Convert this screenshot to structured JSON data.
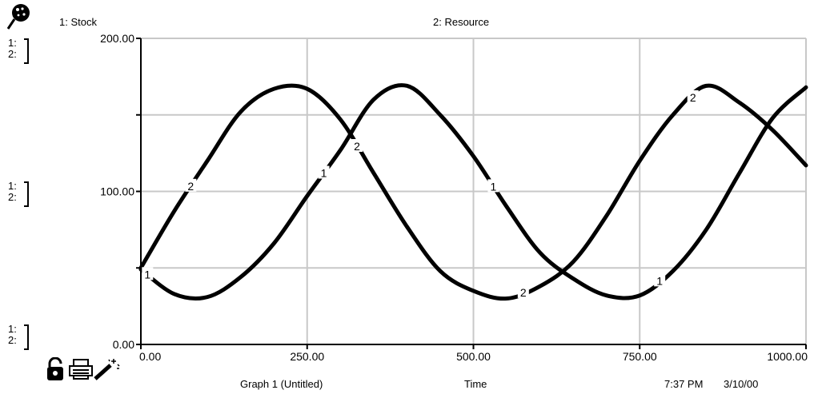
{
  "header": {
    "series1_label": "1: Stock",
    "series2_label": "2: Resource"
  },
  "scale_labels": {
    "top": [
      "1:",
      "2:"
    ],
    "mid": [
      "1:",
      "2:"
    ],
    "bottom": [
      "1:",
      "2:"
    ]
  },
  "footer": {
    "graph_title": "Graph 1 (Untitled)",
    "x_title": "Time",
    "time": "7:37 PM",
    "date": "3/10/00"
  },
  "icons": [
    "pin-icon",
    "lock-icon",
    "print-icon",
    "magic-wand-icon"
  ],
  "chart_data": {
    "type": "line",
    "title": "",
    "xlabel": "Time",
    "ylabel": "",
    "xlim": [
      0,
      1000
    ],
    "ylim": [
      0,
      200
    ],
    "x_ticks": [
      "0.00",
      "250.00",
      "500.00",
      "750.00",
      "1000.00"
    ],
    "y_ticks": [
      "0.00",
      "100.00",
      "200.00"
    ],
    "grid": true,
    "series": [
      {
        "name": "Stock",
        "marker": "1",
        "x": [
          0,
          50,
          100,
          150,
          200,
          250,
          300,
          350,
          400,
          450,
          500,
          550,
          600,
          650,
          700,
          750,
          800,
          850,
          900,
          950,
          1000
        ],
        "y": [
          49,
          33,
          31,
          44,
          66,
          97,
          127,
          160,
          169,
          150,
          123,
          90,
          60,
          43,
          32,
          32,
          48,
          75,
          112,
          148,
          168
        ],
        "marker_x": [
          10,
          275,
          530,
          780
        ]
      },
      {
        "name": "Resource",
        "marker": "2",
        "x": [
          0,
          50,
          100,
          150,
          200,
          250,
          300,
          350,
          400,
          450,
          500,
          550,
          600,
          650,
          700,
          750,
          800,
          850,
          900,
          950,
          1000
        ],
        "y": [
          50,
          87,
          120,
          152,
          167,
          167,
          147,
          112,
          77,
          48,
          35,
          30,
          38,
          54,
          84,
          120,
          150,
          169,
          158,
          140,
          117
        ],
        "marker_x": [
          75,
          325,
          575,
          830
        ]
      }
    ]
  }
}
